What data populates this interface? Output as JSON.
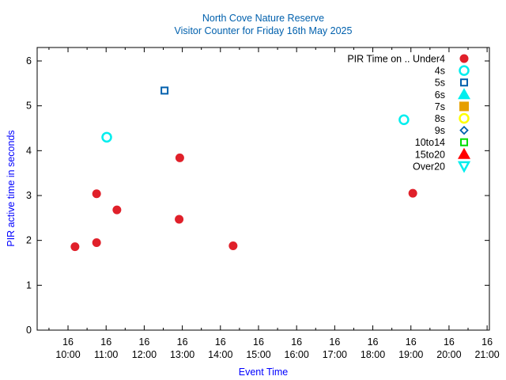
{
  "chart_data": {
    "type": "scatter",
    "title": "North Cove Nature Reserve",
    "subtitle": "Visitor Counter for Friday 16th May 2025",
    "xlabel": "Event Time",
    "ylabel": "PIR active time in seconds",
    "xlim_hours": [
      9.19,
      21.06
    ],
    "ylim": [
      0,
      6.3
    ],
    "y_ticks": [
      0,
      1,
      2,
      3,
      4,
      5,
      6
    ],
    "x_ticks": [
      {
        "hour": 10,
        "day": "16",
        "time": "10:00"
      },
      {
        "hour": 11,
        "day": "16",
        "time": "11:00"
      },
      {
        "hour": 12,
        "day": "16",
        "time": "12:00"
      },
      {
        "hour": 13,
        "day": "16",
        "time": "13:00"
      },
      {
        "hour": 14,
        "day": "16",
        "time": "14:00"
      },
      {
        "hour": 15,
        "day": "16",
        "time": "15:00"
      },
      {
        "hour": 16,
        "day": "16",
        "time": "16:00"
      },
      {
        "hour": 17,
        "day": "16",
        "time": "17:00"
      },
      {
        "hour": 18,
        "day": "16",
        "time": "18:00"
      },
      {
        "hour": 19,
        "day": "16",
        "time": "19:00"
      },
      {
        "hour": 20,
        "day": "16",
        "time": "20:00"
      },
      {
        "hour": 21,
        "day": "16",
        "time": "21:00"
      }
    ],
    "legend_position": "top-right",
    "legend_title": "PIR Time on ..",
    "series": [
      {
        "name": "Under4",
        "marker": "filled-circle",
        "color": "#e0202a",
        "points": [
          [
            "10:11",
            1.86
          ],
          [
            "10:45",
            3.04
          ],
          [
            "10:45",
            1.95
          ],
          [
            "11:17",
            2.68
          ],
          [
            "12:56",
            3.84
          ],
          [
            "12:55",
            2.47
          ],
          [
            "14:20",
            1.88
          ],
          [
            "19:03",
            3.05
          ]
        ]
      },
      {
        "name": "4s",
        "marker": "open-circle",
        "color": "#00eeee",
        "points": [
          [
            "11:01",
            4.3
          ],
          [
            "18:49",
            4.69
          ]
        ]
      },
      {
        "name": "5s",
        "marker": "open-square",
        "color": "#0060ad",
        "points": [
          [
            "12:32",
            5.34
          ]
        ]
      },
      {
        "name": "6s",
        "marker": "filled-triangle",
        "color": "#00eeee",
        "points": []
      },
      {
        "name": "7s",
        "marker": "filled-square",
        "color": "#e69f00",
        "points": []
      },
      {
        "name": "8s",
        "marker": "open-circle",
        "color": "#ffff00",
        "points": []
      },
      {
        "name": "9s",
        "marker": "open-diamond",
        "color": "#0060ad",
        "points": []
      },
      {
        "name": "10to14",
        "marker": "open-square",
        "color": "#00dd00",
        "points": []
      },
      {
        "name": "15to20",
        "marker": "filled-triangle",
        "color": "#ff0000",
        "points": []
      },
      {
        "name": "Over20",
        "marker": "open-triangle-down",
        "color": "#00eeee",
        "points": []
      }
    ],
    "title_color": "#0060ad",
    "axis_label_color": "#0000ff"
  }
}
